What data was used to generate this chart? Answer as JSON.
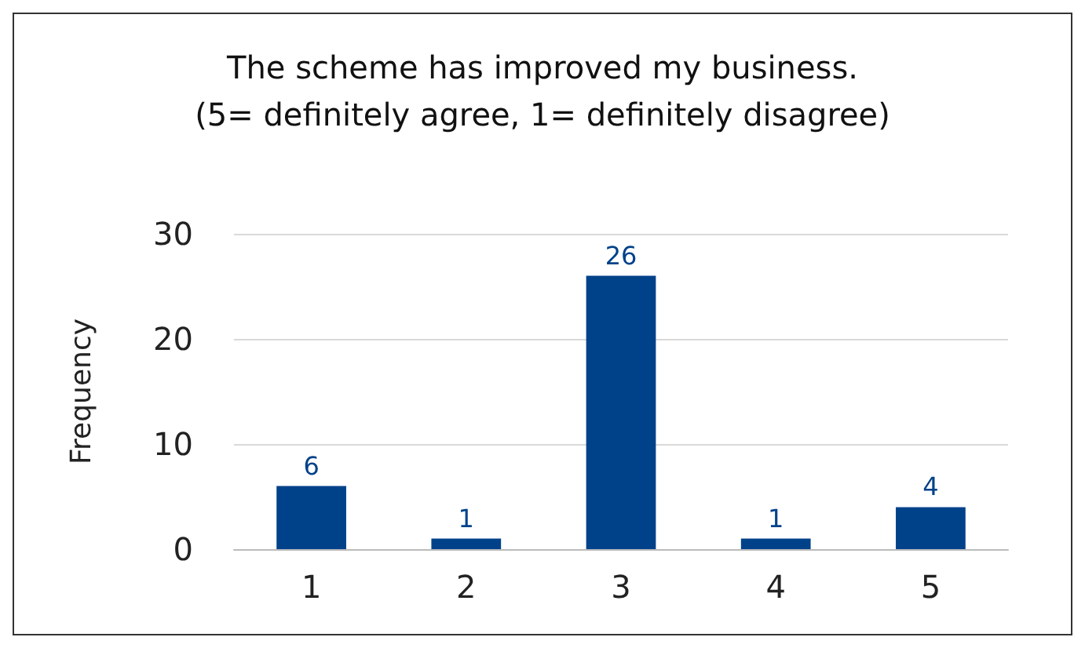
{
  "chart_data": {
    "type": "bar",
    "title": "The scheme has improved my business.\n(5= definitely agree, 1= definitely disagree)",
    "ylabel": "Frequency",
    "categories": [
      "1",
      "2",
      "3",
      "4",
      "5"
    ],
    "values": [
      6,
      1,
      26,
      1,
      4
    ],
    "color": "#00428a",
    "ylim": [
      0,
      30
    ],
    "yticks": [
      0,
      10,
      20,
      30
    ],
    "grid": "y",
    "data_labels": true
  }
}
